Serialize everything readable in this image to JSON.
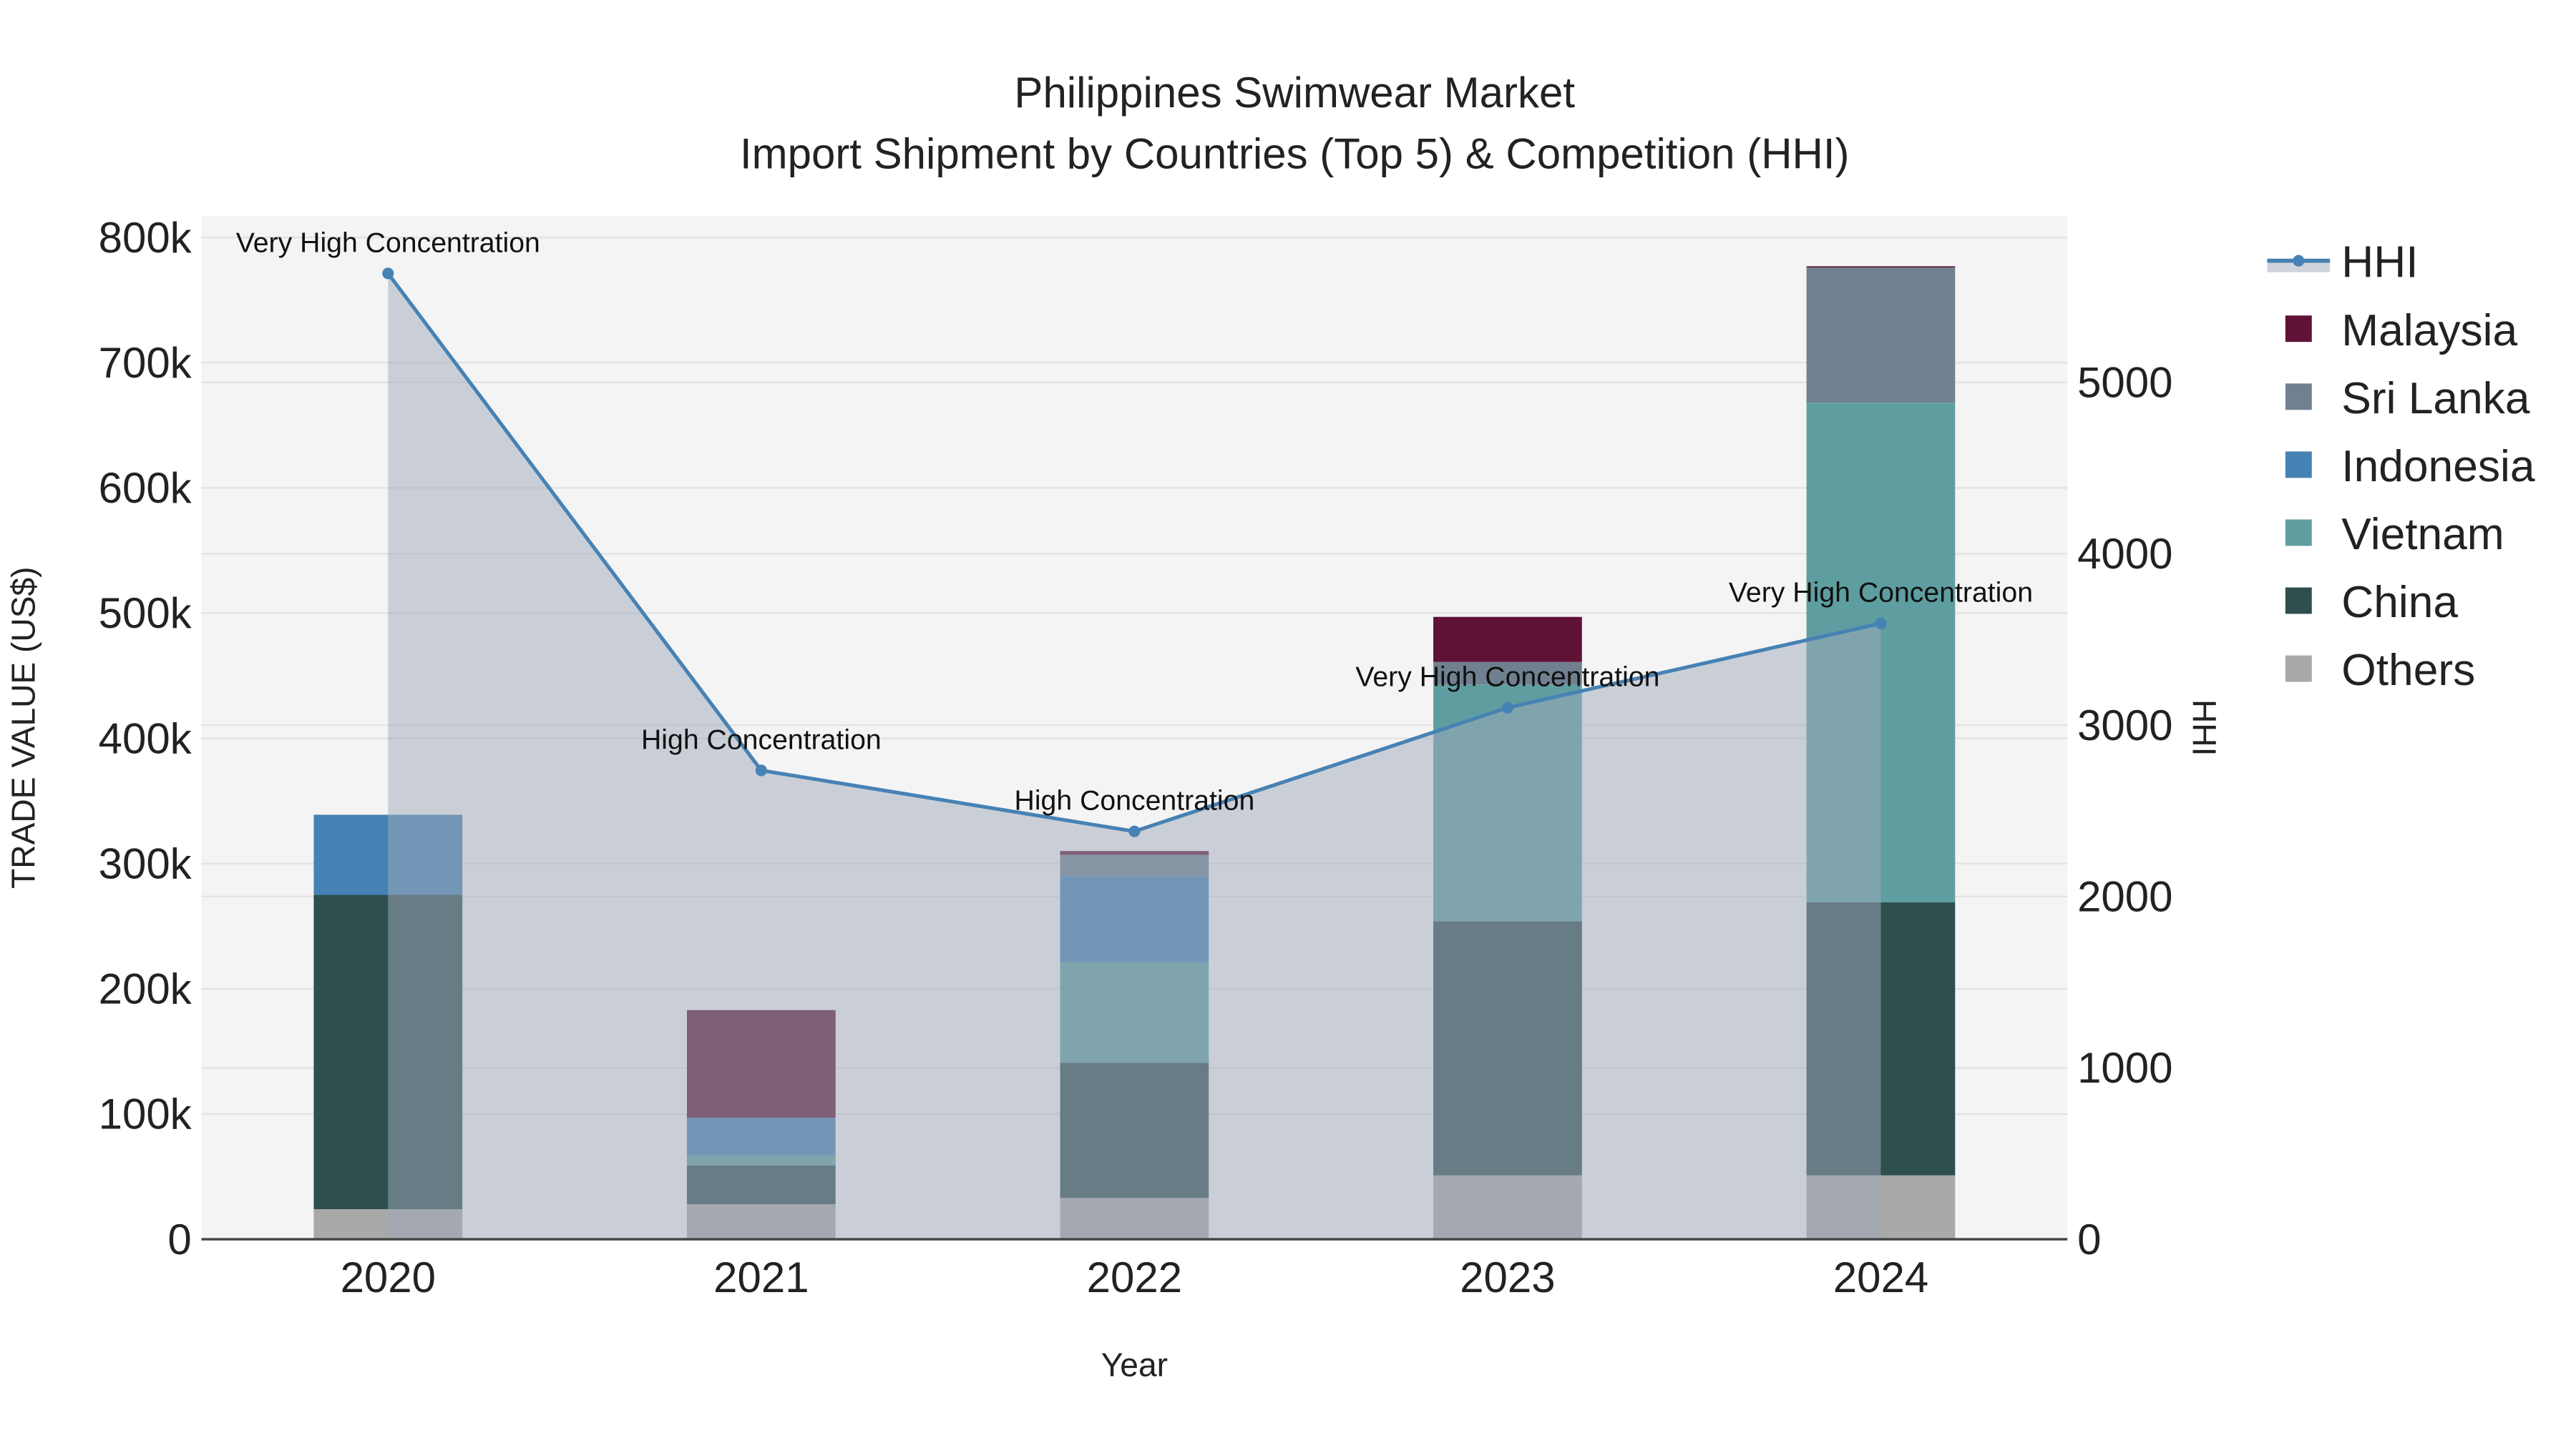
{
  "chart_data": {
    "type": "bar",
    "title": "Philippines Swimwear Market",
    "subtitle": "Import Shipment by Countries (Top 5) & Competition (HHI)",
    "xlabel": "Year",
    "ylabel": "TRADE VALUE (US$)",
    "y2label": "HHI",
    "categories": [
      "2020",
      "2021",
      "2022",
      "2023",
      "2024"
    ],
    "ylim": [
      0,
      817000
    ],
    "y2lim": [
      0,
      5970
    ],
    "yticks": [
      0,
      100000,
      200000,
      300000,
      400000,
      500000,
      600000,
      700000,
      800000
    ],
    "ytick_labels": [
      "0",
      "100k",
      "200k",
      "300k",
      "400k",
      "500k",
      "600k",
      "700k",
      "800k"
    ],
    "y2ticks": [
      0,
      1000,
      2000,
      3000,
      4000,
      5000
    ],
    "y2tick_labels": [
      "0",
      "1000",
      "2000",
      "3000",
      "4000",
      "5000"
    ],
    "stacked": true,
    "series": [
      {
        "name": "Others",
        "color": "#a9a9a9",
        "values": [
          24000,
          28000,
          33000,
          51000,
          51000
        ]
      },
      {
        "name": "China",
        "color": "#2f4f4f",
        "values": [
          251000,
          31000,
          108000,
          203000,
          218000
        ]
      },
      {
        "name": "Vietnam",
        "color": "#5f9ea0",
        "values": [
          0,
          8000,
          80000,
          189000,
          399000
        ]
      },
      {
        "name": "Indonesia",
        "color": "#4682b4",
        "values": [
          64000,
          30000,
          69000,
          0,
          0
        ]
      },
      {
        "name": "Sri Lanka",
        "color": "#708090",
        "values": [
          0,
          0,
          17000,
          18000,
          108000
        ]
      },
      {
        "name": "Malaysia",
        "color": "#5f1236",
        "values": [
          0,
          86000,
          3000,
          36000,
          1000
        ]
      }
    ],
    "line": {
      "name": "HHI",
      "color": "#4682b4",
      "values": [
        5636,
        2736,
        2380,
        3102,
        3594
      ],
      "annotations": [
        "Very High Concentration",
        "High Concentration",
        "High Concentration",
        "Very High Concentration",
        "Very High Concentration"
      ]
    },
    "legend": {
      "placement": "right",
      "entries": [
        "HHI",
        "Malaysia",
        "Sri Lanka",
        "Indonesia",
        "Vietnam",
        "China",
        "Others"
      ]
    },
    "grid": true
  }
}
